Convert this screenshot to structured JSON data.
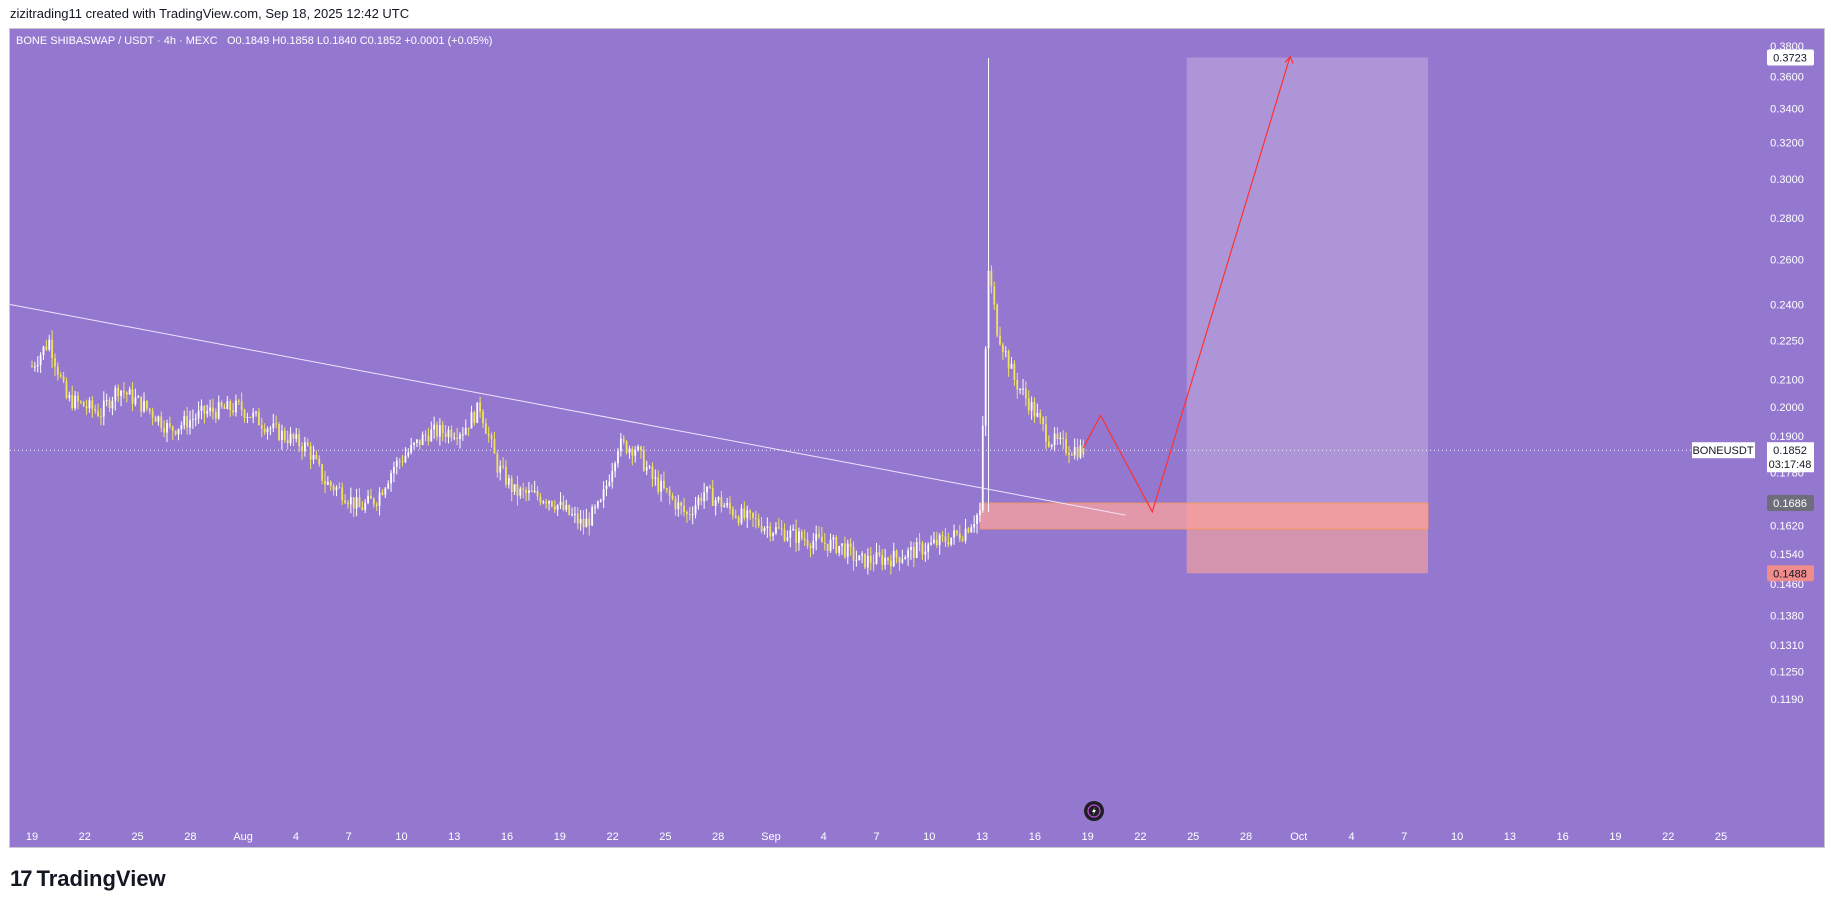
{
  "header": {
    "caption": "zizitrading11 created with TradingView.com, Sep 18, 2025 12:42 UTC"
  },
  "footer": {
    "brand": "TradingView",
    "logo_mark": "17"
  },
  "colors": {
    "background": "#9478d0",
    "candle_up": "#ffffff",
    "candle_down": "#f2e35a",
    "trendline": "#efe6ff",
    "projection": "#ff3030",
    "target_zone": "#b39ad8",
    "stop_zone": "#f0a0a0",
    "demand_zone": "#f7a0a0",
    "label_dark": "#6e6e7a",
    "label_red": "#f08c8c"
  },
  "chart_data": {
    "type": "candlestick",
    "title": "BONE SHIBASWAP / USDT · 4h · MEXC",
    "ohlc_text": "O0.1849  H0.1858  L0.1840  C0.1852  +0.0001 (+0.05%)",
    "symbol": "BONEUSDT",
    "last_price": "0.1852",
    "countdown": "03:17:48",
    "scale": "log",
    "ylim": [
      0.119,
      0.38
    ],
    "y_ticks": [
      "0.3800",
      "0.3600",
      "0.3400",
      "0.3200",
      "0.3000",
      "0.2800",
      "0.2600",
      "0.2400",
      "0.2250",
      "0.2100",
      "0.2000",
      "0.1900",
      "0.1780",
      "0.1620",
      "0.1540",
      "0.1460",
      "0.1380",
      "0.1310",
      "0.1250",
      "0.1190"
    ],
    "price_labels": [
      {
        "value": "0.3723",
        "style": "white"
      },
      {
        "value": "0.1686",
        "style": "dark"
      },
      {
        "value": "0.1488",
        "style": "red"
      }
    ],
    "x_dates_range": [
      "2025-07-19",
      "2025-10-25"
    ],
    "x_ticks": [
      "19",
      "22",
      "25",
      "28",
      "Aug",
      "4",
      "7",
      "10",
      "13",
      "16",
      "19",
      "22",
      "25",
      "28",
      "Sep",
      "4",
      "7",
      "10",
      "13",
      "16",
      "19",
      "22",
      "25",
      "28",
      "Oct",
      "4",
      "7",
      "10",
      "13",
      "16",
      "19",
      "22",
      "25"
    ],
    "approx_close_waypoints": [
      {
        "date": "2025-07-19",
        "price": 0.215
      },
      {
        "date": "2025-07-20",
        "price": 0.225
      },
      {
        "date": "2025-07-21",
        "price": 0.203
      },
      {
        "date": "2025-07-23",
        "price": 0.198
      },
      {
        "date": "2025-07-24",
        "price": 0.207
      },
      {
        "date": "2025-07-26",
        "price": 0.198
      },
      {
        "date": "2025-07-27",
        "price": 0.192
      },
      {
        "date": "2025-07-29",
        "price": 0.198
      },
      {
        "date": "2025-07-31",
        "price": 0.2
      },
      {
        "date": "2025-08-02",
        "price": 0.192
      },
      {
        "date": "2025-08-04",
        "price": 0.186
      },
      {
        "date": "2025-08-05",
        "price": 0.175
      },
      {
        "date": "2025-08-06",
        "price": 0.172
      },
      {
        "date": "2025-08-07",
        "price": 0.167
      },
      {
        "date": "2025-08-08",
        "price": 0.17
      },
      {
        "date": "2025-08-09",
        "price": 0.18
      },
      {
        "date": "2025-08-11",
        "price": 0.191
      },
      {
        "date": "2025-08-13",
        "price": 0.192
      },
      {
        "date": "2025-08-14",
        "price": 0.2
      },
      {
        "date": "2025-08-15",
        "price": 0.18
      },
      {
        "date": "2025-08-16",
        "price": 0.172
      },
      {
        "date": "2025-08-18",
        "price": 0.17
      },
      {
        "date": "2025-08-20",
        "price": 0.162
      },
      {
        "date": "2025-08-21",
        "price": 0.168
      },
      {
        "date": "2025-08-22",
        "price": 0.187
      },
      {
        "date": "2025-08-23",
        "price": 0.186
      },
      {
        "date": "2025-08-24",
        "price": 0.176
      },
      {
        "date": "2025-08-26",
        "price": 0.165
      },
      {
        "date": "2025-08-27",
        "price": 0.172
      },
      {
        "date": "2025-08-29",
        "price": 0.165
      },
      {
        "date": "2025-08-31",
        "price": 0.161
      },
      {
        "date": "2025-09-02",
        "price": 0.158
      },
      {
        "date": "2025-09-04",
        "price": 0.156
      },
      {
        "date": "2025-09-05",
        "price": 0.152
      },
      {
        "date": "2025-09-07",
        "price": 0.153
      },
      {
        "date": "2025-09-09",
        "price": 0.156
      },
      {
        "date": "2025-09-11",
        "price": 0.16
      },
      {
        "date": "2025-09-12",
        "price": 0.166
      },
      {
        "date": "2025-09-12T12",
        "price": 0.255
      },
      {
        "date": "2025-09-13",
        "price": 0.23
      },
      {
        "date": "2025-09-14",
        "price": 0.21
      },
      {
        "date": "2025-09-15",
        "price": 0.2
      },
      {
        "date": "2025-09-16",
        "price": 0.189
      },
      {
        "date": "2025-09-17",
        "price": 0.186
      },
      {
        "date": "2025-09-18",
        "price": 0.1852
      }
    ],
    "wick_spike": {
      "date": "2025-09-12T12",
      "high": 0.372,
      "low": 0.166
    },
    "annotations": {
      "trendline": {
        "from": {
          "date": "2025-07-19",
          "price": 0.24
        },
        "to": {
          "date": "2025-09-20",
          "price": 0.165
        }
      },
      "demand_zone": {
        "from_date": "2025-09-12",
        "to_date": "2025-10-08",
        "top": 0.1686,
        "bottom": 0.161
      },
      "long_position": {
        "from_date": "2025-09-24",
        "to_date": "2025-10-08",
        "target": 0.3723,
        "entry": 0.1686,
        "stop": 0.1488
      },
      "projection_path": [
        {
          "date": "2025-09-18",
          "price": 0.186
        },
        {
          "date": "2025-09-19",
          "price": 0.197
        },
        {
          "date": "2025-09-22",
          "price": 0.166
        },
        {
          "date": "2025-09-30",
          "price": 0.373
        }
      ]
    }
  }
}
